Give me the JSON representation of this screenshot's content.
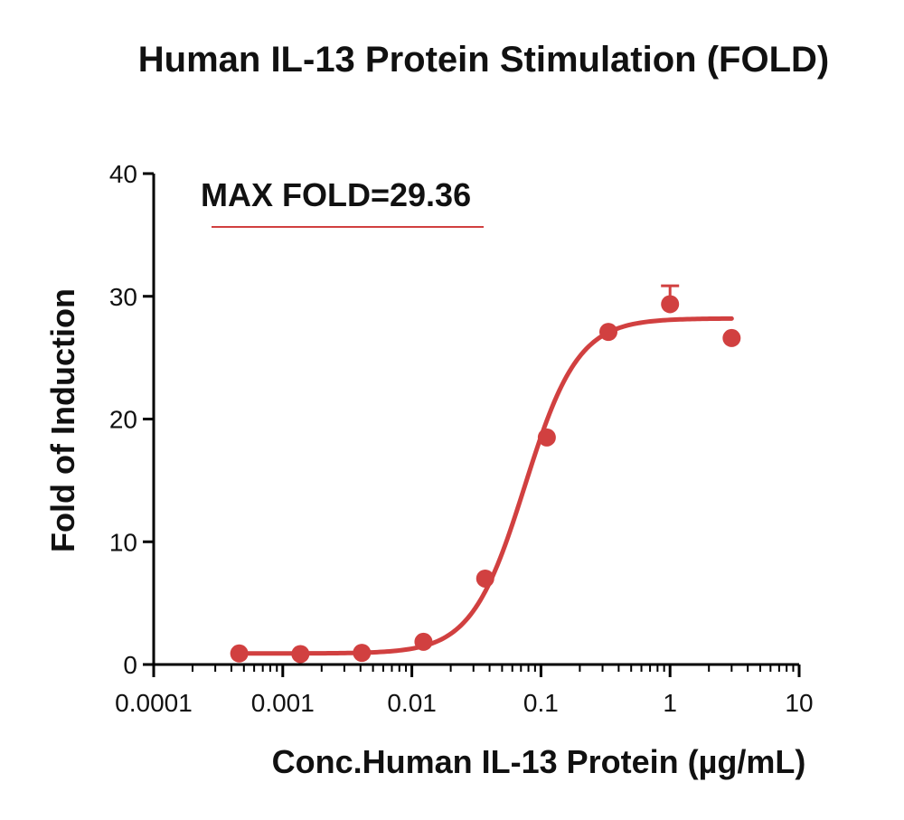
{
  "chart_data": {
    "type": "scatter",
    "title": "Human IL-13 Protein Stimulation (FOLD)",
    "xlabel": "Conc.Human IL-13 Protein (µg/mL)",
    "ylabel": "Fold of Induction",
    "xscale": "log",
    "xlim": [
      0.0001,
      10
    ],
    "ylim": [
      0,
      40
    ],
    "x_ticks": [
      {
        "value": 0.0001,
        "label": "0.0001"
      },
      {
        "value": 0.001,
        "label": "0.001"
      },
      {
        "value": 0.01,
        "label": "0.01"
      },
      {
        "value": 0.1,
        "label": "0.1"
      },
      {
        "value": 1,
        "label": "1"
      },
      {
        "value": 10,
        "label": "10"
      }
    ],
    "y_ticks": [
      {
        "value": 0,
        "label": "0"
      },
      {
        "value": 10,
        "label": "10"
      },
      {
        "value": 20,
        "label": "20"
      },
      {
        "value": 30,
        "label": "30"
      },
      {
        "value": 40,
        "label": "40"
      }
    ],
    "annotation": "MAX FOLD=29.36",
    "grid": false,
    "series": [
      {
        "color": "#d14040",
        "points": [
          {
            "x": 0.00046,
            "y": 0.9
          },
          {
            "x": 0.00137,
            "y": 0.85
          },
          {
            "x": 0.0041,
            "y": 0.95
          },
          {
            "x": 0.0123,
            "y": 1.85
          },
          {
            "x": 0.037,
            "y": 7.0
          },
          {
            "x": 0.111,
            "y": 18.5
          },
          {
            "x": 0.333,
            "y": 27.1
          },
          {
            "x": 1.0,
            "y": 29.36,
            "err": 1.5
          },
          {
            "x": 3.0,
            "y": 26.6
          }
        ],
        "fit": {
          "bottom": 0.9,
          "top": 28.2,
          "ec50": 0.075,
          "hill": 2.1,
          "x_range": [
            0.00046,
            3.0
          ]
        }
      }
    ]
  }
}
